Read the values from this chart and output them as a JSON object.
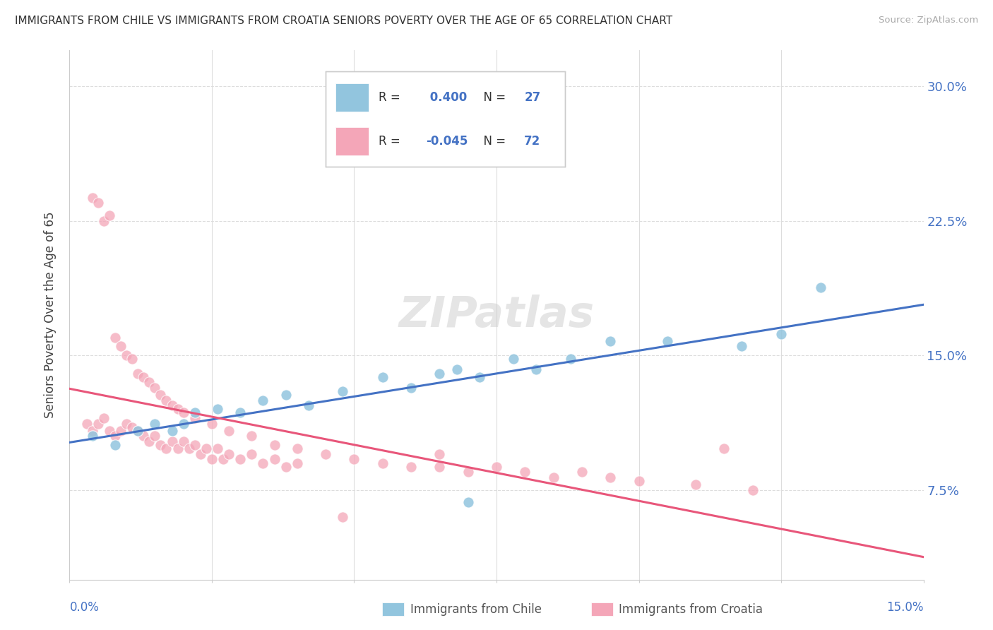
{
  "title": "IMMIGRANTS FROM CHILE VS IMMIGRANTS FROM CROATIA SENIORS POVERTY OVER THE AGE OF 65 CORRELATION CHART",
  "source": "Source: ZipAtlas.com",
  "ylabel": "Seniors Poverty Over the Age of 65",
  "yticks": [
    "7.5%",
    "15.0%",
    "22.5%",
    "30.0%"
  ],
  "ytick_vals": [
    0.075,
    0.15,
    0.225,
    0.3
  ],
  "xlim": [
    0.0,
    0.15
  ],
  "ylim": [
    0.025,
    0.32
  ],
  "color_chile": "#92c5de",
  "color_croatia": "#f4a6b8",
  "line_color_chile": "#4472c4",
  "line_color_croatia": "#e8567a",
  "watermark": "ZIPatlas",
  "chile_x": [
    0.004,
    0.008,
    0.012,
    0.015,
    0.018,
    0.02,
    0.022,
    0.026,
    0.03,
    0.034,
    0.038,
    0.042,
    0.048,
    0.055,
    0.06,
    0.065,
    0.068,
    0.072,
    0.078,
    0.082,
    0.088,
    0.095,
    0.105,
    0.118,
    0.125,
    0.132,
    0.07
  ],
  "chile_y": [
    0.105,
    0.1,
    0.108,
    0.112,
    0.108,
    0.112,
    0.118,
    0.12,
    0.118,
    0.125,
    0.128,
    0.122,
    0.13,
    0.138,
    0.132,
    0.14,
    0.142,
    0.138,
    0.148,
    0.142,
    0.148,
    0.158,
    0.158,
    0.155,
    0.162,
    0.188,
    0.068
  ],
  "croatia_x": [
    0.003,
    0.004,
    0.005,
    0.006,
    0.007,
    0.008,
    0.009,
    0.01,
    0.011,
    0.012,
    0.013,
    0.014,
    0.015,
    0.016,
    0.017,
    0.018,
    0.019,
    0.02,
    0.021,
    0.022,
    0.023,
    0.024,
    0.025,
    0.026,
    0.027,
    0.028,
    0.03,
    0.032,
    0.034,
    0.036,
    0.038,
    0.04,
    0.004,
    0.005,
    0.006,
    0.007,
    0.008,
    0.009,
    0.01,
    0.011,
    0.012,
    0.013,
    0.014,
    0.015,
    0.016,
    0.017,
    0.018,
    0.019,
    0.02,
    0.022,
    0.025,
    0.028,
    0.032,
    0.036,
    0.04,
    0.045,
    0.05,
    0.055,
    0.06,
    0.065,
    0.07,
    0.075,
    0.08,
    0.085,
    0.09,
    0.095,
    0.1,
    0.11,
    0.12,
    0.065,
    0.115,
    0.048
  ],
  "croatia_y": [
    0.112,
    0.108,
    0.112,
    0.115,
    0.108,
    0.105,
    0.108,
    0.112,
    0.11,
    0.108,
    0.105,
    0.102,
    0.105,
    0.1,
    0.098,
    0.102,
    0.098,
    0.102,
    0.098,
    0.1,
    0.095,
    0.098,
    0.092,
    0.098,
    0.092,
    0.095,
    0.092,
    0.095,
    0.09,
    0.092,
    0.088,
    0.09,
    0.238,
    0.235,
    0.225,
    0.228,
    0.16,
    0.155,
    0.15,
    0.148,
    0.14,
    0.138,
    0.135,
    0.132,
    0.128,
    0.125,
    0.122,
    0.12,
    0.118,
    0.115,
    0.112,
    0.108,
    0.105,
    0.1,
    0.098,
    0.095,
    0.092,
    0.09,
    0.088,
    0.088,
    0.085,
    0.088,
    0.085,
    0.082,
    0.085,
    0.082,
    0.08,
    0.078,
    0.075,
    0.095,
    0.098,
    0.06
  ],
  "bg_color": "#ffffff",
  "grid_color": "#dddddd"
}
